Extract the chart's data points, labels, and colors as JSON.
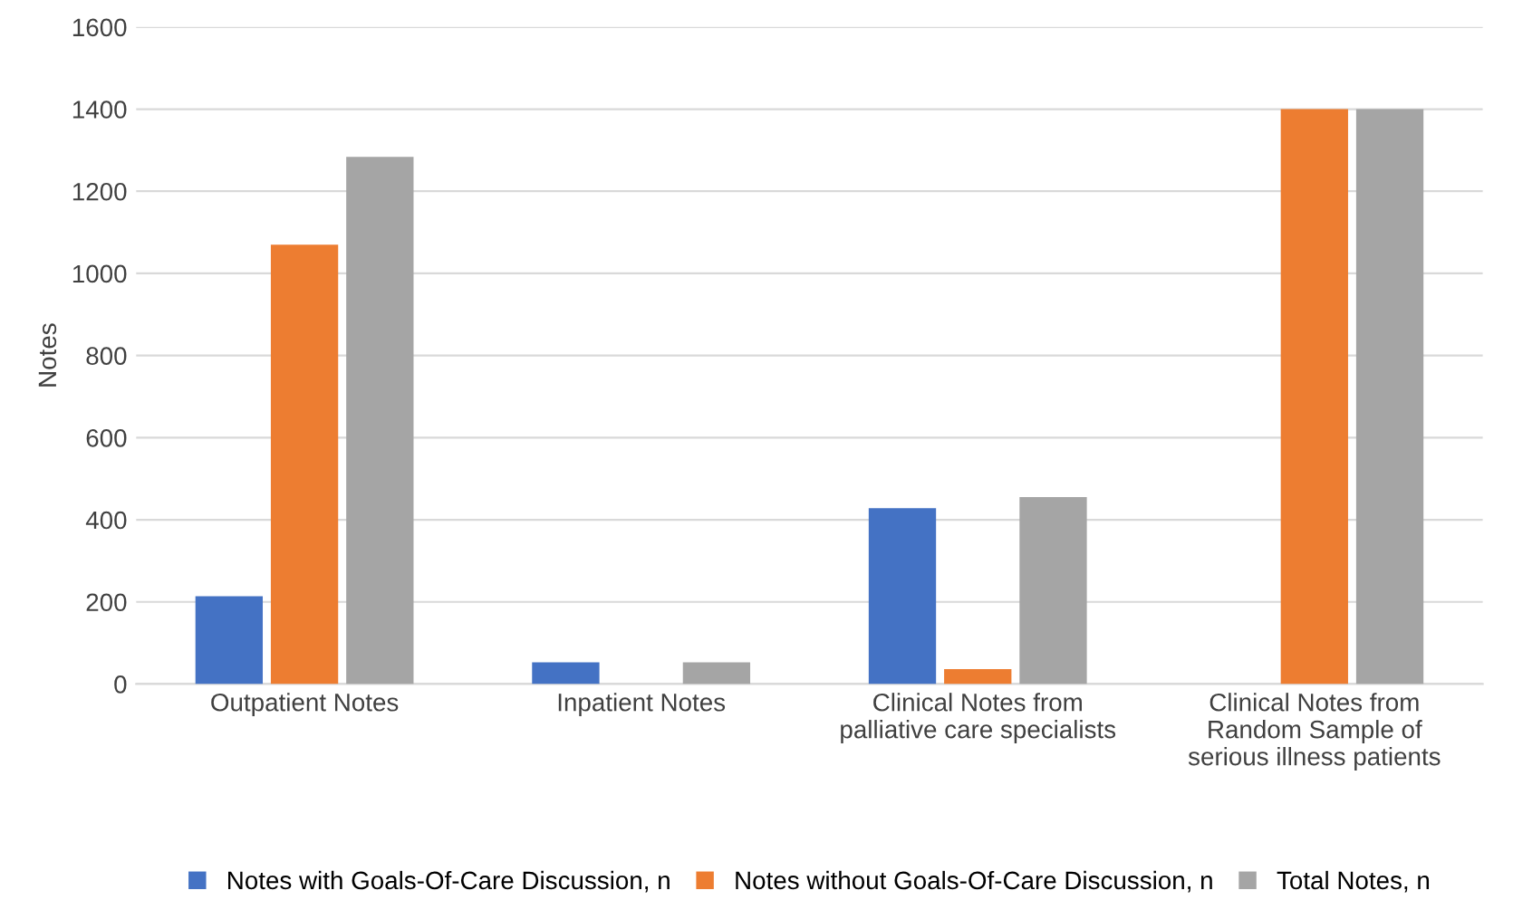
{
  "chart_data": {
    "type": "bar",
    "ylabel": "Notes",
    "categories": [
      "Outpatient Notes",
      "Inpatient Notes",
      "Clinical Notes from\npalliative care specialists",
      "Clinical Notes from\nRandom Sample of\nserious illness patients"
    ],
    "series": [
      {
        "name": "Notes with Goals-Of-Care Discussion, n",
        "color": "#4472c4",
        "values": [
          214,
          53,
          428,
          0
        ]
      },
      {
        "name": "Notes without Goals-Of-Care Discussion, n",
        "color": "#ed7d31",
        "values": [
          1070,
          0,
          36,
          1400
        ]
      },
      {
        "name": "Total Notes, n",
        "color": "#a5a5a5",
        "values": [
          1284,
          53,
          455,
          1400
        ]
      }
    ],
    "ylim": [
      0,
      1600
    ],
    "yticks": [
      0,
      200,
      400,
      600,
      800,
      1000,
      1200,
      1400,
      1600
    ],
    "grid": "y",
    "legend": "bottom"
  }
}
